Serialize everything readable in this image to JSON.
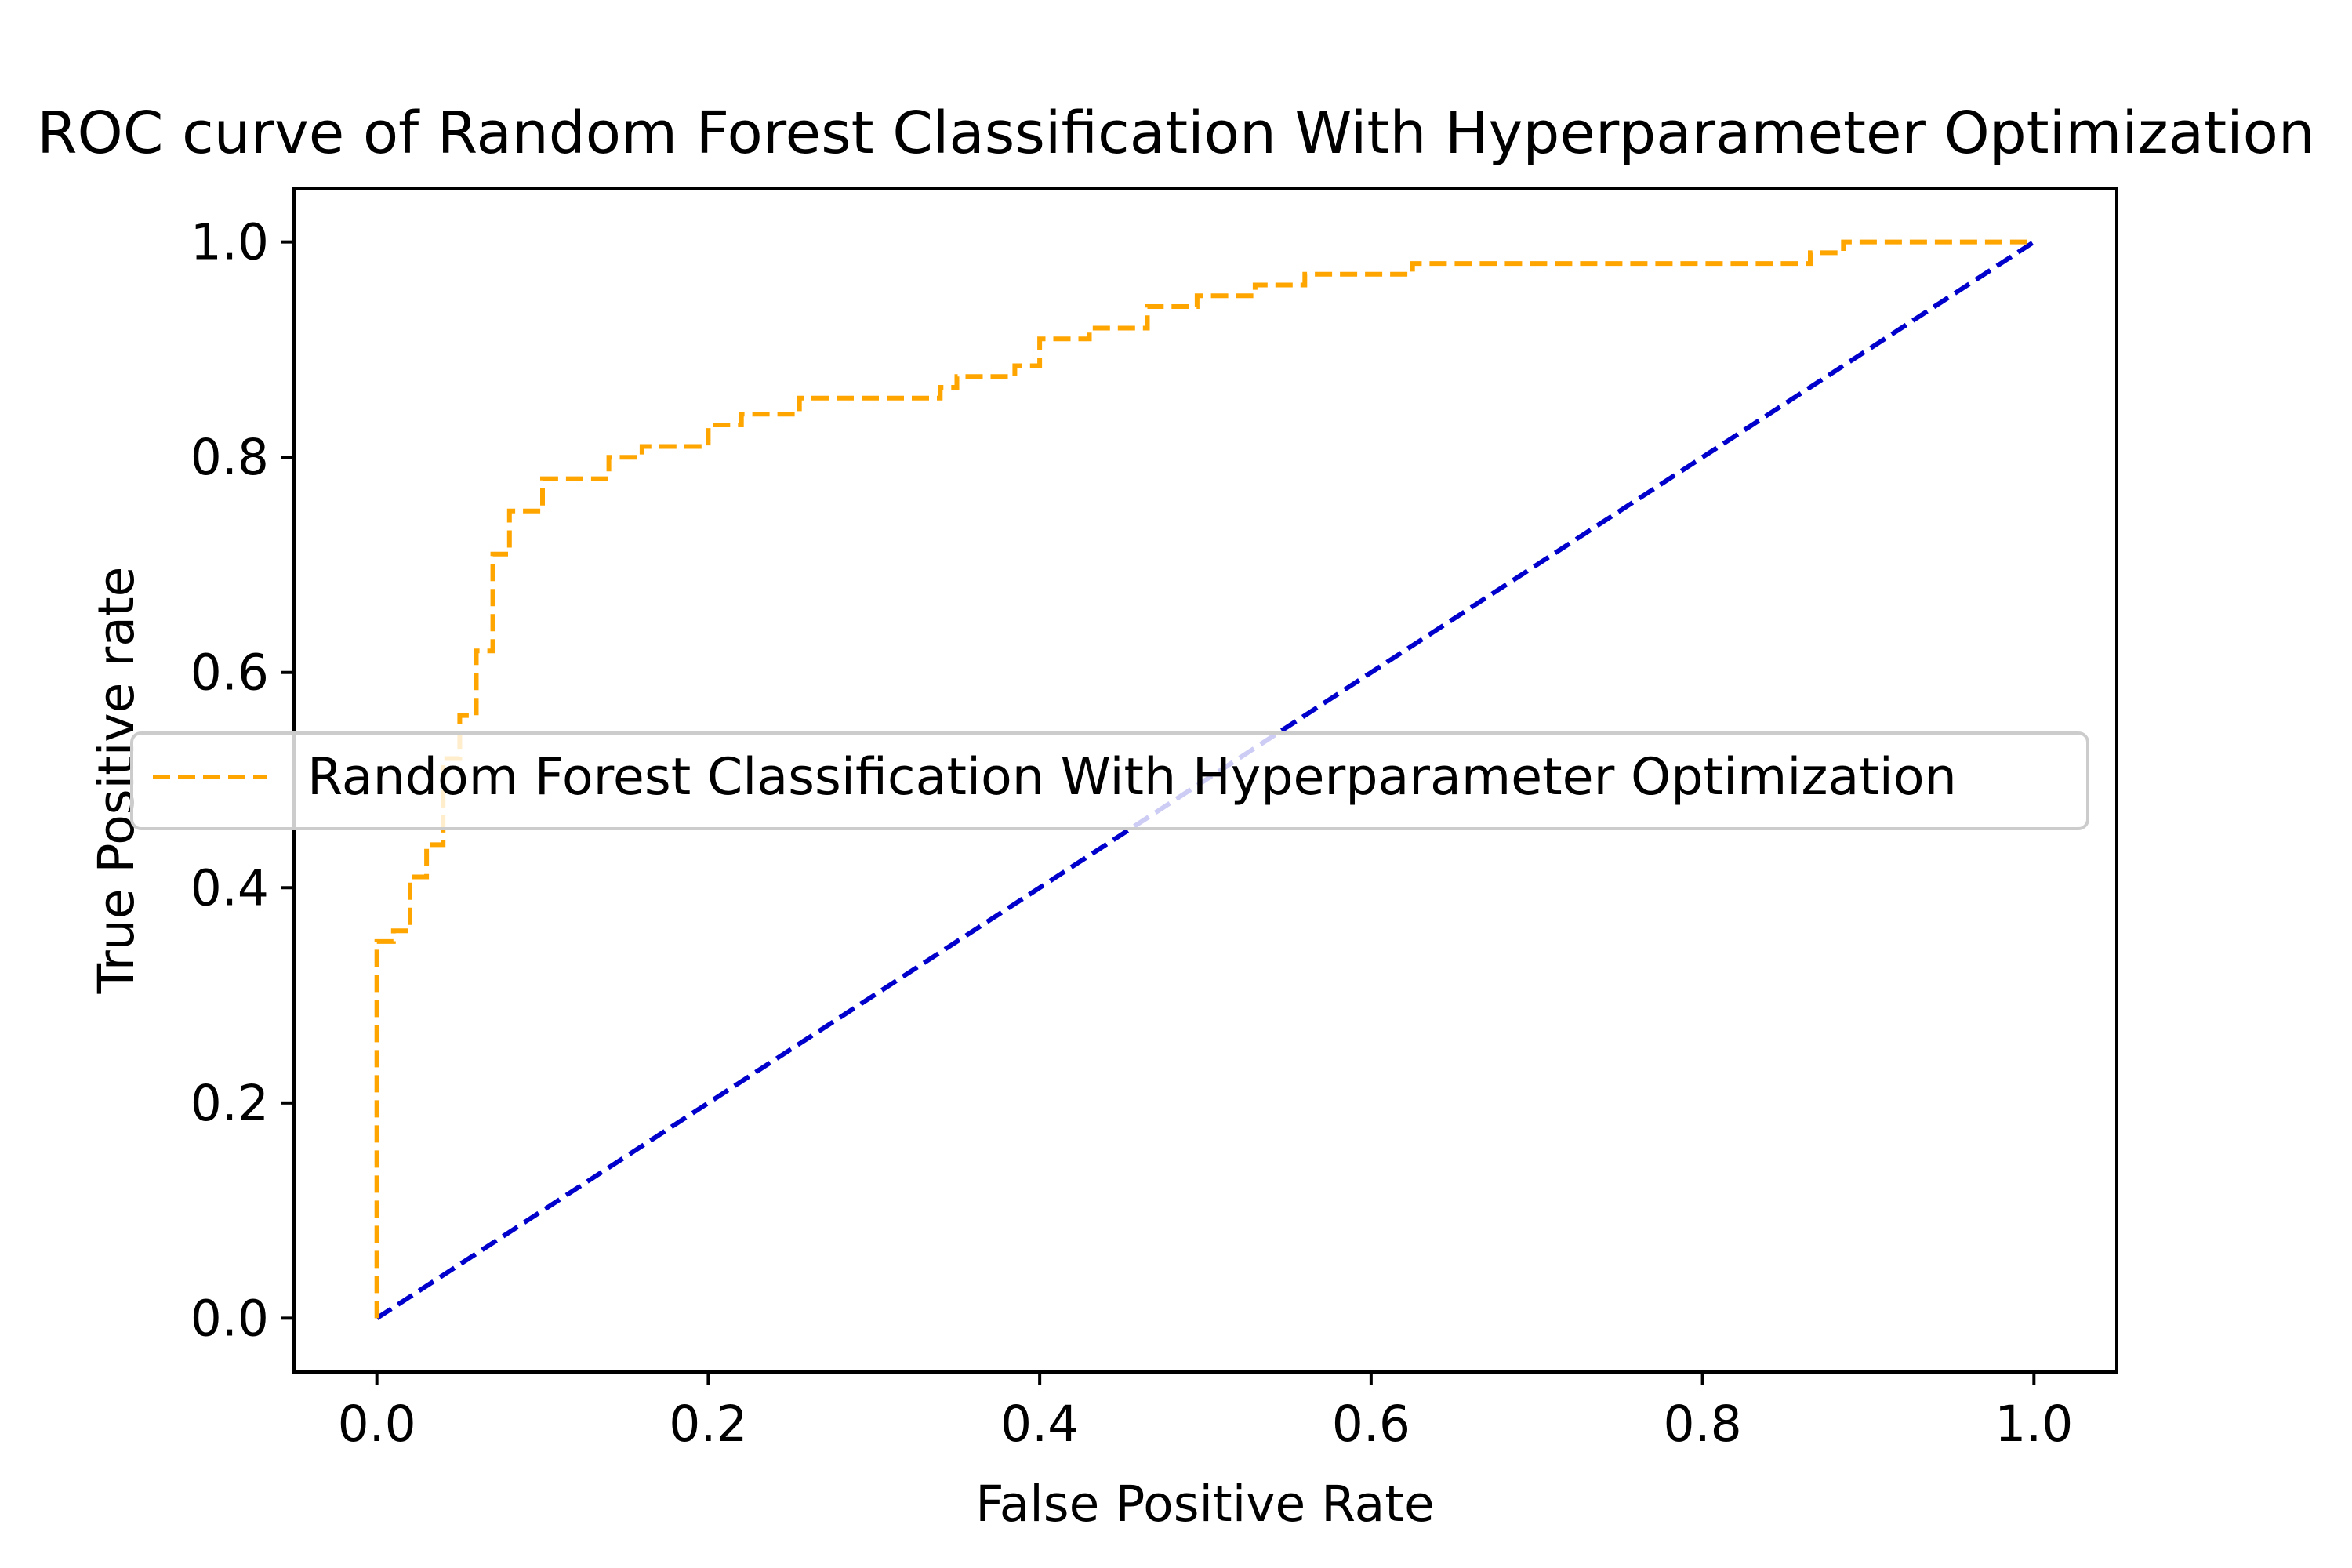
{
  "chart_data": {
    "type": "line",
    "title": "ROC curve of Random Forest Classification With Hyperparameter Optimization",
    "xlabel": "False Positive Rate",
    "ylabel": "True Positive rate",
    "xlim": [
      -0.05,
      1.05
    ],
    "ylim": [
      -0.05,
      1.05
    ],
    "x_ticks": [
      "0.0",
      "0.2",
      "0.4",
      "0.6",
      "0.8",
      "1.0"
    ],
    "y_ticks": [
      "0.0",
      "0.2",
      "0.4",
      "0.6",
      "0.8",
      "1.0"
    ],
    "grid": false,
    "legend_position": "center-left",
    "series": [
      {
        "name": "Random Forest Classification With Hyperparameter Optimization",
        "color": "#ffa500",
        "line_style": "dashed",
        "x": [
          0.0,
          0.0,
          0.01,
          0.01,
          0.02,
          0.02,
          0.03,
          0.03,
          0.04,
          0.04,
          0.05,
          0.05,
          0.06,
          0.06,
          0.07,
          0.07,
          0.08,
          0.08,
          0.1,
          0.1,
          0.14,
          0.14,
          0.16,
          0.16,
          0.2,
          0.2,
          0.22,
          0.22,
          0.255,
          0.255,
          0.34,
          0.34,
          0.35,
          0.35,
          0.385,
          0.385,
          0.4,
          0.4,
          0.43,
          0.43,
          0.465,
          0.465,
          0.495,
          0.495,
          0.53,
          0.53,
          0.56,
          0.56,
          0.625,
          0.625,
          0.865,
          0.865,
          0.885,
          0.885,
          1.0
        ],
        "y": [
          0.0,
          0.35,
          0.35,
          0.36,
          0.36,
          0.41,
          0.41,
          0.44,
          0.44,
          0.52,
          0.52,
          0.56,
          0.56,
          0.62,
          0.62,
          0.71,
          0.71,
          0.75,
          0.75,
          0.78,
          0.78,
          0.8,
          0.8,
          0.81,
          0.81,
          0.83,
          0.83,
          0.84,
          0.84,
          0.855,
          0.855,
          0.865,
          0.865,
          0.875,
          0.875,
          0.885,
          0.885,
          0.91,
          0.91,
          0.92,
          0.92,
          0.94,
          0.94,
          0.95,
          0.95,
          0.96,
          0.96,
          0.97,
          0.97,
          0.98,
          0.98,
          0.99,
          0.99,
          1.0,
          1.0
        ]
      },
      {
        "color": "#0000cd",
        "line_style": "dashed",
        "x": [
          0.0,
          1.0
        ],
        "y": [
          0.0,
          1.0
        ]
      }
    ]
  }
}
